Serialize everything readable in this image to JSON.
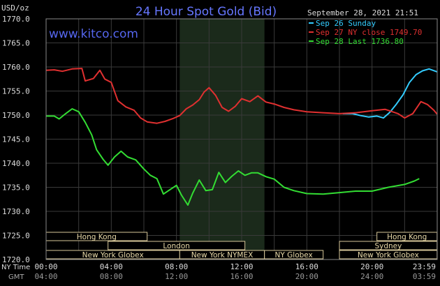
{
  "chart_data": {
    "type": "line",
    "title": "24 Hour Spot Gold (Bid)",
    "source": "www.kitco.com",
    "timestamp": "September 28, 2021 21:51",
    "y_unit": "USD/oz",
    "ylim": [
      1720.0,
      1770.0
    ],
    "y_ticks": [
      "1770.0",
      "1765.0",
      "1760.0",
      "1755.0",
      "1750.0",
      "1745.0",
      "1740.0",
      "1735.0",
      "1730.0",
      "1725.0",
      "1720.0"
    ],
    "x_row_label_ny": "NY Time",
    "x_row_label_gmt": "GMT",
    "ny_ticks": [
      "00:00",
      "04:00",
      "08:00",
      "12:00",
      "16:00",
      "20:00",
      "23:59"
    ],
    "gmt_ticks": [
      "04:00",
      "08:00",
      "12:00",
      "16:00",
      "20:00",
      "24:00",
      "03:59"
    ],
    "series": [
      {
        "name": "Sep 26 Sunday",
        "color": "#33ccff",
        "points": [
          [
            18.2,
            1750.3
          ],
          [
            18.8,
            1750.3
          ],
          [
            19.3,
            1749.9
          ],
          [
            19.8,
            1749.6
          ],
          [
            20.3,
            1749.8
          ],
          [
            20.7,
            1749.4
          ],
          [
            21.1,
            1750.6
          ],
          [
            21.5,
            1752.3
          ],
          [
            21.9,
            1754.2
          ],
          [
            22.3,
            1756.8
          ],
          [
            22.7,
            1758.4
          ],
          [
            23.1,
            1759.2
          ],
          [
            23.5,
            1759.6
          ],
          [
            23.99,
            1759.0
          ]
        ]
      },
      {
        "name": "Sep 27 NY close 1749.70",
        "color": "#e03030",
        "points": [
          [
            0.0,
            1759.3
          ],
          [
            0.5,
            1759.4
          ],
          [
            1.0,
            1759.1
          ],
          [
            1.6,
            1759.6
          ],
          [
            2.2,
            1759.7
          ],
          [
            2.4,
            1757.1
          ],
          [
            2.9,
            1757.6
          ],
          [
            3.3,
            1759.3
          ],
          [
            3.6,
            1757.5
          ],
          [
            4.0,
            1756.8
          ],
          [
            4.4,
            1753.0
          ],
          [
            4.9,
            1751.7
          ],
          [
            5.4,
            1751.0
          ],
          [
            5.8,
            1749.4
          ],
          [
            6.2,
            1748.6
          ],
          [
            6.8,
            1748.3
          ],
          [
            7.3,
            1748.7
          ],
          [
            7.8,
            1749.3
          ],
          [
            8.2,
            1749.9
          ],
          [
            8.6,
            1751.3
          ],
          [
            9.0,
            1752.1
          ],
          [
            9.4,
            1753.2
          ],
          [
            9.7,
            1754.8
          ],
          [
            10.0,
            1755.7
          ],
          [
            10.4,
            1754.1
          ],
          [
            10.8,
            1751.6
          ],
          [
            11.2,
            1750.8
          ],
          [
            11.6,
            1751.8
          ],
          [
            12.0,
            1753.4
          ],
          [
            12.5,
            1752.8
          ],
          [
            13.0,
            1754.0
          ],
          [
            13.5,
            1752.7
          ],
          [
            14.0,
            1752.3
          ],
          [
            14.6,
            1751.6
          ],
          [
            15.2,
            1751.1
          ],
          [
            16.0,
            1750.7
          ],
          [
            17.0,
            1750.5
          ],
          [
            18.0,
            1750.3
          ],
          [
            19.0,
            1750.5
          ],
          [
            20.0,
            1750.9
          ],
          [
            20.8,
            1751.2
          ],
          [
            21.6,
            1750.3
          ],
          [
            22.0,
            1749.4
          ],
          [
            22.5,
            1750.3
          ],
          [
            23.0,
            1752.8
          ],
          [
            23.4,
            1752.2
          ],
          [
            23.8,
            1751.0
          ],
          [
            23.99,
            1750.2
          ]
        ]
      },
      {
        "name": "Sep 28 Last 1736.80",
        "color": "#33dd33",
        "points": [
          [
            0.0,
            1749.8
          ],
          [
            0.5,
            1749.8
          ],
          [
            0.8,
            1749.2
          ],
          [
            1.2,
            1750.3
          ],
          [
            1.6,
            1751.3
          ],
          [
            2.0,
            1750.7
          ],
          [
            2.4,
            1748.5
          ],
          [
            2.8,
            1745.9
          ],
          [
            3.1,
            1742.8
          ],
          [
            3.5,
            1740.8
          ],
          [
            3.8,
            1739.6
          ],
          [
            4.2,
            1741.3
          ],
          [
            4.6,
            1742.5
          ],
          [
            5.0,
            1741.3
          ],
          [
            5.5,
            1740.7
          ],
          [
            6.0,
            1738.8
          ],
          [
            6.4,
            1737.5
          ],
          [
            6.8,
            1736.8
          ],
          [
            7.2,
            1733.6
          ],
          [
            7.6,
            1734.5
          ],
          [
            8.0,
            1735.4
          ],
          [
            8.3,
            1733.4
          ],
          [
            8.7,
            1731.3
          ],
          [
            9.0,
            1733.8
          ],
          [
            9.4,
            1736.5
          ],
          [
            9.8,
            1734.3
          ],
          [
            10.2,
            1734.5
          ],
          [
            10.6,
            1738.1
          ],
          [
            11.0,
            1736.0
          ],
          [
            11.4,
            1737.3
          ],
          [
            11.8,
            1738.4
          ],
          [
            12.2,
            1737.5
          ],
          [
            12.6,
            1738.0
          ],
          [
            13.0,
            1738.0
          ],
          [
            13.5,
            1737.2
          ],
          [
            14.0,
            1736.7
          ],
          [
            14.6,
            1735.0
          ],
          [
            15.2,
            1734.3
          ],
          [
            16.0,
            1733.7
          ],
          [
            17.0,
            1733.6
          ],
          [
            18.0,
            1733.9
          ],
          [
            19.0,
            1734.2
          ],
          [
            20.0,
            1734.2
          ],
          [
            21.0,
            1735.0
          ],
          [
            22.0,
            1735.6
          ],
          [
            22.6,
            1736.3
          ],
          [
            22.9,
            1736.8
          ]
        ]
      }
    ],
    "shaded_region_ny_hours": [
      8.2,
      13.4
    ],
    "sessions": [
      {
        "name": "Hong Kong",
        "row": 0,
        "start": 0.0,
        "end": 6.2
      },
      {
        "name": "London",
        "row": 1,
        "start": 3.8,
        "end": 12.2
      },
      {
        "name": "New York Globex",
        "row": 2,
        "start": 0.0,
        "end": 8.2
      },
      {
        "name": "New York NYMEX",
        "row": 2,
        "start": 8.2,
        "end": 13.4
      },
      {
        "name": "NY Globex",
        "row": 2,
        "start": 13.4,
        "end": 17.0
      },
      {
        "name": "Hong Kong",
        "row": 0,
        "start": 20.3,
        "end": 23.99
      },
      {
        "name": "Sydney",
        "row": 1,
        "start": 18.0,
        "end": 23.99
      },
      {
        "name": "New York Globex",
        "row": 2,
        "start": 18.0,
        "end": 23.99
      }
    ],
    "grid": true,
    "legend": "top-right"
  }
}
